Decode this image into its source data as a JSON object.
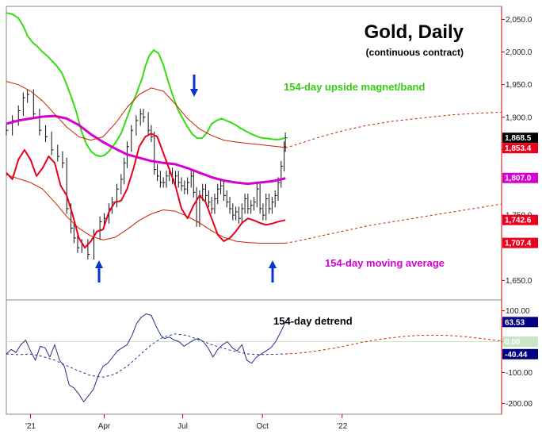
{
  "chart_data": [
    {
      "type": "line",
      "title": "Gold, Daily",
      "subtitle": "(continuous contract)",
      "y_ticks": [
        "2,050.0",
        "2,000.0",
        "1,950.0",
        "1,900.0",
        "1,850.0",
        "1,750.0",
        "1,650.0"
      ],
      "x_ticks": [
        "'21",
        "Apr",
        "Jul",
        "Oct",
        "'22"
      ],
      "ylim": [
        1620,
        2070
      ],
      "grid": false,
      "annotations": {
        "upper_band": "154-day upside magnet/band",
        "moving_average": "154-day moving average"
      },
      "last_values": [
        {
          "label": "1,868.5",
          "value": 1868.5,
          "color": "#000000"
        },
        {
          "label": "1,853.4",
          "value": 1853.4,
          "color": "#e8001c"
        },
        {
          "label": "1,807.0",
          "value": 1807.0,
          "color": "#d400d4"
        },
        {
          "label": "1,742.6",
          "value": 1742.6,
          "color": "#e8001c"
        },
        {
          "label": "1,707.4",
          "value": 1707.4,
          "color": "#e8001c"
        }
      ],
      "series": [
        {
          "key": "price",
          "color": "#111111",
          "x": [
            0,
            10,
            20,
            28,
            35,
            45,
            55,
            65,
            75,
            85,
            93,
            100,
            107,
            112,
            118,
            125,
            135,
            145,
            155,
            162,
            170,
            175,
            183,
            190,
            195,
            200,
            207,
            215,
            222,
            227,
            235,
            240,
            245,
            250,
            255,
            260,
            265,
            270,
            275,
            280,
            285,
            290,
            295,
            300,
            306,
            310,
            315,
            320,
            325,
            330,
            335,
            340,
            345,
            350,
            355,
            360,
            365,
            370,
            375,
            380,
            385,
            390,
            395,
            400,
            405,
            410,
            415,
            420,
            425,
            430,
            435,
            440,
            445,
            450,
            455,
            460,
            462
          ],
          "y": [
            1880,
            1895,
            1910,
            1930,
            1935,
            1905,
            1880,
            1870,
            1850,
            1840,
            1830,
            1760,
            1730,
            1715,
            1700,
            1705,
            1690,
            1720,
            1740,
            1745,
            1760,
            1770,
            1790,
            1805,
            1830,
            1855,
            1880,
            1895,
            1905,
            1900,
            1880,
            1870,
            1820,
            1810,
            1800,
            1800,
            1810,
            1815,
            1805,
            1810,
            1800,
            1795,
            1790,
            1800,
            1810,
            1785,
            1740,
            1780,
            1790,
            1780,
            1770,
            1760,
            1775,
            1790,
            1795,
            1780,
            1770,
            1760,
            1750,
            1755,
            1745,
            1760,
            1775,
            1760,
            1765,
            1770,
            1790,
            1760,
            1750,
            1775,
            1760,
            1770,
            1780,
            1800,
            1825,
            1855,
            1868.5
          ]
        },
        {
          "key": "upper_band",
          "color": "#33dd11",
          "x": [
            0,
            10,
            20,
            28,
            35,
            43,
            52,
            60,
            68,
            76,
            84,
            92,
            100,
            108,
            116,
            124,
            132,
            140,
            148,
            156,
            163,
            170,
            180,
            190,
            200,
            208,
            215,
            220,
            225,
            230,
            237,
            244,
            252,
            260,
            268,
            276,
            284,
            292,
            300,
            308,
            316,
            324,
            332,
            340,
            348,
            356,
            364,
            372,
            380,
            388,
            396,
            404,
            412,
            420,
            428,
            436,
            444,
            452,
            460,
            462
          ],
          "y": [
            2060,
            2058,
            2052,
            2040,
            2025,
            2015,
            2008,
            2000,
            1994,
            1986,
            1978,
            1968,
            1950,
            1930,
            1908,
            1880,
            1860,
            1848,
            1842,
            1840,
            1842,
            1848,
            1860,
            1875,
            1900,
            1920,
            1935,
            1948,
            1960,
            1978,
            1995,
            2003,
            1998,
            1980,
            1955,
            1932,
            1912,
            1898,
            1885,
            1874,
            1868,
            1868,
            1876,
            1890,
            1895,
            1898,
            1895,
            1892,
            1888,
            1883,
            1879,
            1875,
            1872,
            1869,
            1868,
            1867,
            1866,
            1866,
            1868,
            1869
          ]
        },
        {
          "key": "moving_average",
          "color": "#d400d4",
          "x": [
            0,
            20,
            40,
            60,
            80,
            100,
            120,
            140,
            160,
            180,
            200,
            220,
            240,
            260,
            280,
            300,
            320,
            340,
            360,
            380,
            400,
            420,
            440,
            460,
            462
          ],
          "y": [
            1890,
            1895,
            1898,
            1901,
            1902,
            1898,
            1888,
            1874,
            1862,
            1852,
            1843,
            1838,
            1833,
            1830,
            1828,
            1822,
            1815,
            1808,
            1803,
            1800,
            1798,
            1800,
            1802,
            1806,
            1807
          ]
        },
        {
          "key": "detrend_fast",
          "color": "#e8001c",
          "x": [
            0,
            10,
            20,
            30,
            40,
            50,
            60,
            70,
            80,
            90,
            100,
            110,
            120,
            130,
            140,
            150,
            160,
            170,
            180,
            190,
            200,
            210,
            220,
            230,
            240,
            250,
            260,
            270,
            280,
            290,
            300,
            310,
            320,
            330,
            340,
            350,
            360,
            370,
            380,
            390,
            400,
            410,
            420,
            430,
            440,
            450,
            460,
            462
          ],
          "y": [
            1815,
            1805,
            1835,
            1850,
            1835,
            1810,
            1822,
            1840,
            1830,
            1795,
            1780,
            1750,
            1715,
            1700,
            1710,
            1725,
            1728,
            1755,
            1770,
            1772,
            1790,
            1820,
            1855,
            1870,
            1875,
            1870,
            1845,
            1820,
            1795,
            1760,
            1745,
            1765,
            1780,
            1770,
            1745,
            1720,
            1710,
            1715,
            1725,
            1738,
            1745,
            1742,
            1738,
            1735,
            1737,
            1740,
            1742,
            1742.6
          ]
        },
        {
          "key": "lower_band",
          "color": "#cc2200",
          "x": [
            0,
            20,
            40,
            60,
            80,
            100,
            120,
            140,
            160,
            180,
            200,
            220,
            240,
            260,
            280,
            300,
            320,
            340,
            360,
            380,
            400,
            420,
            440,
            460,
            462
          ],
          "y": [
            1812,
            1806,
            1800,
            1790,
            1770,
            1748,
            1730,
            1718,
            1712,
            1716,
            1728,
            1742,
            1752,
            1758,
            1756,
            1748,
            1738,
            1726,
            1716,
            1710,
            1708,
            1707,
            1707,
            1707,
            1707.4
          ]
        },
        {
          "key": "cycle_upper",
          "color": "#cc2200",
          "x": [
            0,
            20,
            40,
            60,
            80,
            100,
            120,
            140,
            160,
            180,
            200,
            220,
            240,
            260,
            280,
            300,
            320,
            340,
            360,
            380,
            400,
            420,
            440,
            460,
            462
          ],
          "y": [
            1955,
            1950,
            1940,
            1925,
            1905,
            1885,
            1870,
            1865,
            1870,
            1890,
            1915,
            1935,
            1945,
            1940,
            1920,
            1898,
            1882,
            1872,
            1865,
            1862,
            1860,
            1858,
            1856,
            1854,
            1853.4
          ]
        },
        {
          "key": "cycle_upper_projection",
          "color": "#cc2200",
          "style": "dashed",
          "x": [
            462,
            480,
            500,
            520,
            540,
            560,
            580,
            600,
            620,
            640,
            660,
            680,
            700,
            720,
            740,
            760,
            780,
            800,
            820
          ],
          "y": [
            1853,
            1858,
            1864,
            1870,
            1875,
            1880,
            1884,
            1888,
            1891,
            1894,
            1896,
            1898,
            1900,
            1902,
            1904,
            1905,
            1906,
            1907,
            1908
          ]
        },
        {
          "key": "cycle_lower_projection",
          "color": "#cc2200",
          "style": "dashed",
          "x": [
            462,
            480,
            500,
            520,
            540,
            560,
            580,
            600,
            620,
            640,
            660,
            680,
            700,
            720,
            740,
            760,
            780,
            800,
            820
          ],
          "y": [
            1707,
            1710,
            1714,
            1718,
            1722,
            1726,
            1730,
            1734,
            1737,
            1740,
            1743,
            1746,
            1749,
            1752,
            1755,
            1758,
            1761,
            1764,
            1767
          ]
        }
      ]
    },
    {
      "type": "line",
      "title": "154-day detrend",
      "y_ticks": [
        "100.00",
        "0.00",
        "-100.00",
        "-200.00"
      ],
      "ylim": [
        -235,
        135
      ],
      "last_values": [
        {
          "label": "63.53",
          "value": 63.53,
          "color": "#000080"
        },
        {
          "label": "0.00",
          "value": 0.0,
          "color": "#c8e6c8"
        },
        {
          "label": "-40.44",
          "value": -40.44,
          "color": "#000080"
        }
      ],
      "series": [
        {
          "key": "detrend",
          "color": "#2a2a8a",
          "x": [
            0,
            8,
            16,
            24,
            32,
            40,
            48,
            56,
            64,
            72,
            80,
            88,
            96,
            104,
            112,
            120,
            128,
            136,
            144,
            152,
            160,
            168,
            176,
            184,
            192,
            200,
            208,
            216,
            224,
            232,
            240,
            248,
            256,
            262,
            270,
            278,
            286,
            294,
            302,
            310,
            318,
            326,
            334,
            342,
            350,
            358,
            366,
            374,
            382,
            390,
            398,
            406,
            414,
            422,
            430,
            438,
            446,
            454,
            462
          ],
          "y": [
            -40,
            -25,
            -35,
            -10,
            5,
            -30,
            -60,
            -15,
            -20,
            -50,
            -10,
            -60,
            -80,
            -140,
            -150,
            -170,
            -195,
            -175,
            -155,
            -110,
            -80,
            -70,
            -50,
            -30,
            -20,
            -10,
            20,
            60,
            80,
            90,
            85,
            50,
            20,
            10,
            15,
            5,
            0,
            -15,
            -5,
            5,
            10,
            0,
            -20,
            -50,
            -25,
            -10,
            0,
            -20,
            -30,
            -10,
            -60,
            -70,
            -50,
            -40,
            -30,
            -20,
            0,
            30,
            63.53
          ]
        },
        {
          "key": "detrend_cycle",
          "color": "#2a2a8a",
          "style": "dashed",
          "x": [
            0,
            20,
            40,
            60,
            80,
            100,
            120,
            140,
            160,
            180,
            200,
            220,
            240,
            260,
            280,
            300,
            320,
            340,
            360,
            380,
            400,
            420,
            440,
            460,
            462
          ],
          "y": [
            -40,
            -42,
            -40,
            -48,
            -60,
            -78,
            -95,
            -110,
            -115,
            -105,
            -80,
            -45,
            -10,
            15,
            25,
            20,
            5,
            -10,
            -22,
            -32,
            -40,
            -42,
            -41,
            -40,
            -40.44
          ]
        },
        {
          "key": "detrend_projection",
          "color": "#cc2200",
          "style": "dashed",
          "x": [
            462,
            480,
            500,
            520,
            540,
            560,
            580,
            600,
            620,
            640,
            660,
            680,
            700,
            720,
            740,
            760,
            780,
            800,
            820
          ],
          "y": [
            -40,
            -38,
            -34,
            -28,
            -22,
            -14,
            -6,
            2,
            8,
            13,
            17,
            20,
            21,
            21,
            19,
            16,
            12,
            7,
            2
          ]
        }
      ]
    }
  ]
}
